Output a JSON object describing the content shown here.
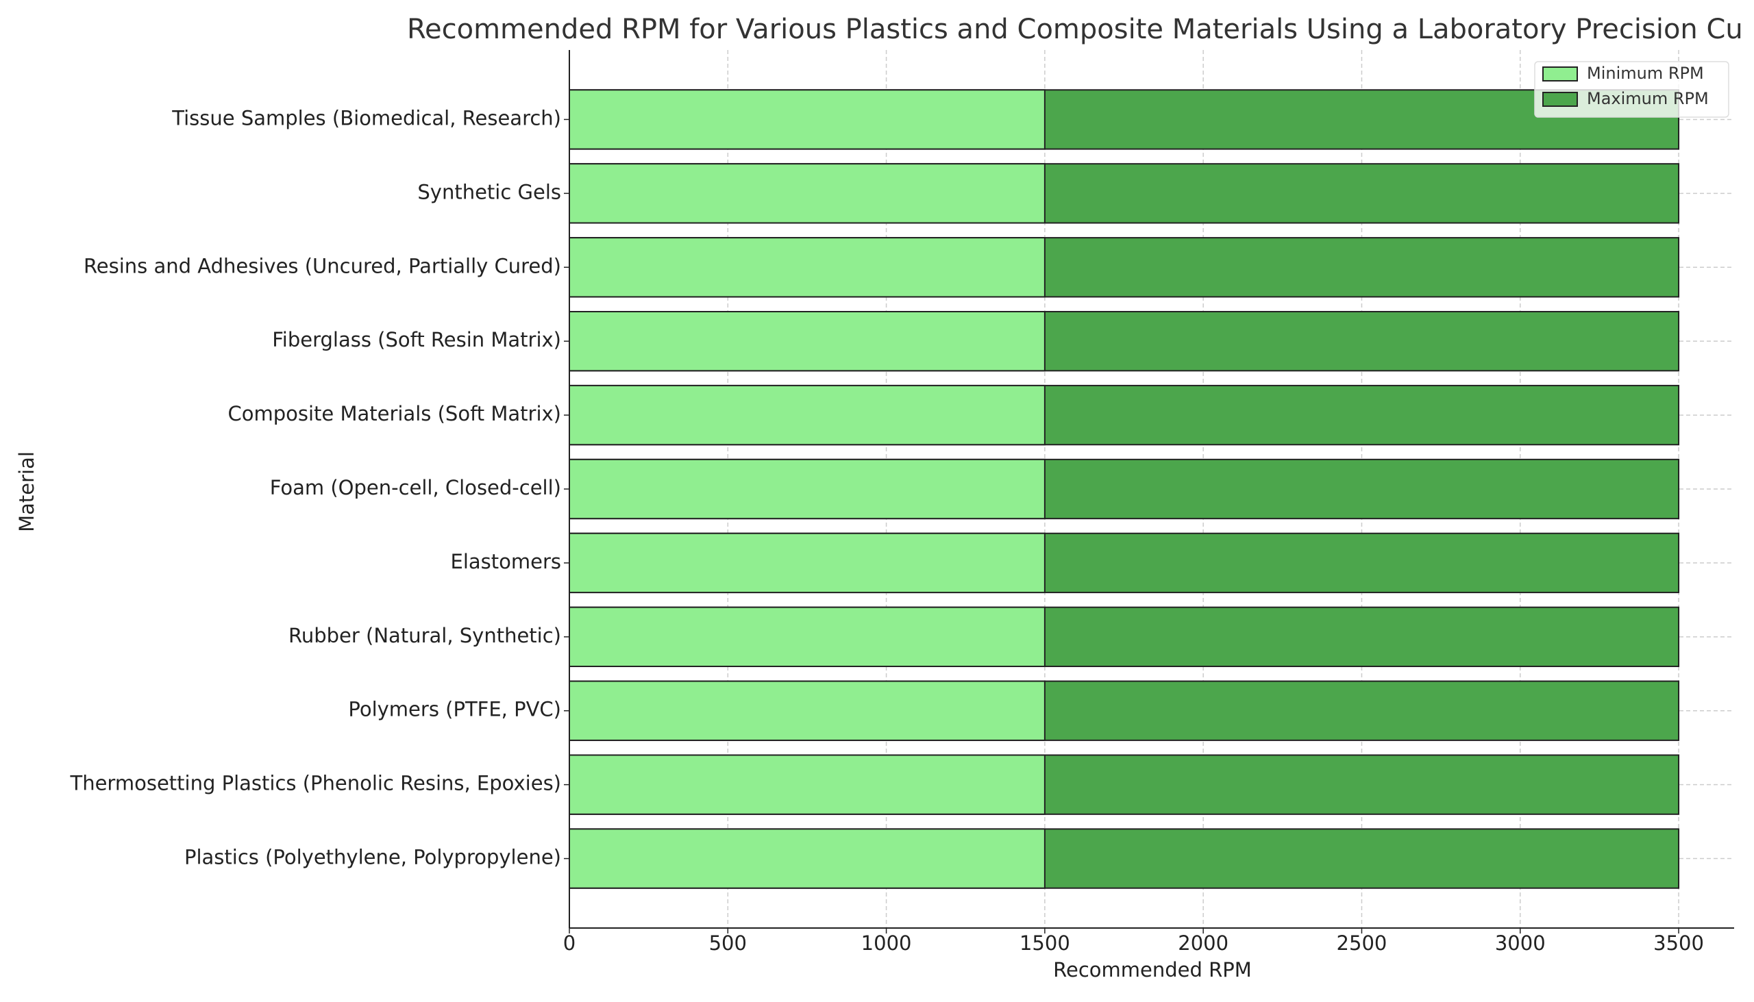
{
  "chart_data": {
    "type": "bar",
    "orientation": "horizontal",
    "title": "Recommended RPM for Various Plastics and Composite Materials Using a Laboratory Precision Cu",
    "x_label": "Recommended RPM",
    "y_label": "Material",
    "categories": [
      "Plastics (Polyethylene, Polypropylene)",
      "Thermosetting Plastics (Phenolic Resins, Epoxies)",
      "Polymers (PTFE, PVC)",
      "Rubber (Natural, Synthetic)",
      "Elastomers",
      "Foam (Open-cell, Closed-cell)",
      "Composite Materials (Soft Matrix)",
      "Fiberglass (Soft Resin Matrix)",
      "Resins and Adhesives (Uncured, Partially Cured)",
      "Synthetic Gels",
      "Tissue Samples (Biomedical, Research)"
    ],
    "series": [
      {
        "name": "Minimum RPM",
        "color": "#90ee90",
        "values": [
          1500,
          1500,
          1500,
          1500,
          1500,
          1500,
          1500,
          1500,
          1500,
          1500,
          1500
        ]
      },
      {
        "name": "Maximum RPM",
        "color": "#4ca64c",
        "values": [
          3500,
          3500,
          3500,
          3500,
          3500,
          3500,
          3500,
          3500,
          3500,
          3500,
          3500
        ]
      }
    ],
    "xlim": [
      0,
      3675
    ],
    "xticks": [
      0,
      500,
      1000,
      1500,
      2000,
      2500,
      3000,
      3500
    ],
    "grid": true,
    "legend": "upper right"
  }
}
